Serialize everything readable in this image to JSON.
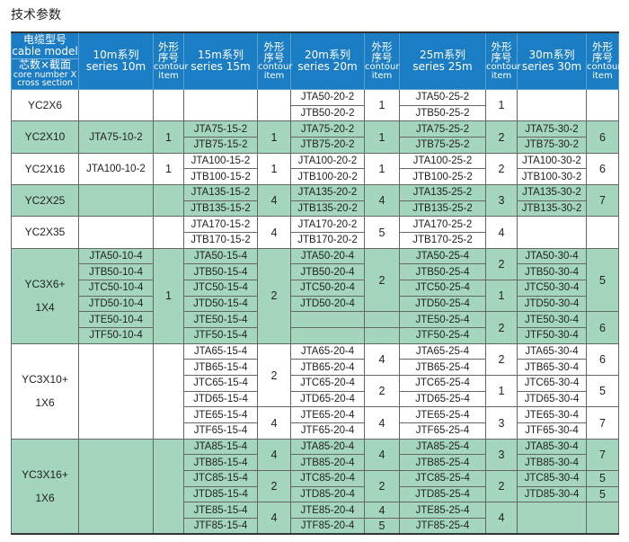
{
  "title": "技术参数",
  "header": {
    "model": {
      "zh": "电缆型号",
      "en": "cable model",
      "zh2": "芯数×截面",
      "en2a": "core number X",
      "en2b": "cross section"
    },
    "series": [
      {
        "zh": "10m系列",
        "en": "series 10m"
      },
      {
        "zh": "15m系列",
        "en": "series 15m"
      },
      {
        "zh": "20m系列",
        "en": "series 20m"
      },
      {
        "zh": "25m系列",
        "en": "series 25m"
      },
      {
        "zh": "30m系列",
        "en": "series 30m"
      }
    ],
    "contour": {
      "zh1": "外形",
      "zh2": "序号",
      "en1": "contour",
      "en2": "item"
    }
  },
  "colors": {
    "header_bg": "#1b7dc3",
    "green_row": "#a3d6bd"
  },
  "groups": [
    {
      "model": [
        "YC2X6"
      ],
      "rows": 2,
      "green": false,
      "cols": {
        "s10": [
          {
            "v": "",
            "span": 2
          }
        ],
        "c10": [
          {
            "v": "",
            "span": 2
          }
        ],
        "s15": [
          {
            "v": "",
            "span": 2
          }
        ],
        "c15": [
          {
            "v": "",
            "span": 2
          }
        ],
        "s20": [
          {
            "v": "JTA50-20-2",
            "span": 1
          },
          {
            "v": "JTB50-20-2",
            "span": 1
          }
        ],
        "c20": [
          {
            "v": "1",
            "span": 2
          }
        ],
        "s25": [
          {
            "v": "JTA50-25-2",
            "span": 1
          },
          {
            "v": "JTB50-25-2",
            "span": 1
          }
        ],
        "c25": [
          {
            "v": "1",
            "span": 2
          }
        ],
        "s30": [
          {
            "v": "",
            "span": 2
          }
        ],
        "c30": [
          {
            "v": "",
            "span": 2
          }
        ]
      }
    },
    {
      "model": [
        "YC2X10"
      ],
      "rows": 2,
      "green": true,
      "cols": {
        "s10": [
          {
            "v": "JTA75-10-2",
            "span": 2
          }
        ],
        "c10": [
          {
            "v": "1",
            "span": 2
          }
        ],
        "s15": [
          {
            "v": "JTA75-15-2",
            "span": 1
          },
          {
            "v": "JTB75-15-2",
            "span": 1
          }
        ],
        "c15": [
          {
            "v": "1",
            "span": 2
          }
        ],
        "s20": [
          {
            "v": "JTA75-20-2",
            "span": 1
          },
          {
            "v": "JTB75-20-2",
            "span": 1
          }
        ],
        "c20": [
          {
            "v": "1",
            "span": 2
          }
        ],
        "s25": [
          {
            "v": "JTA75-25-2",
            "span": 1
          },
          {
            "v": "JTB75-25-2",
            "span": 1
          }
        ],
        "c25": [
          {
            "v": "2",
            "span": 2
          }
        ],
        "s30": [
          {
            "v": "JTA75-30-2",
            "span": 1
          },
          {
            "v": "JTB75-30-2",
            "span": 1
          }
        ],
        "c30": [
          {
            "v": "6",
            "span": 2
          }
        ]
      }
    },
    {
      "model": [
        "YC2X16"
      ],
      "rows": 2,
      "green": false,
      "cols": {
        "s10": [
          {
            "v": "JTA100-10-2",
            "span": 2
          }
        ],
        "c10": [
          {
            "v": "1",
            "span": 2
          }
        ],
        "s15": [
          {
            "v": "JTA100-15-2",
            "span": 1
          },
          {
            "v": "JTB100-15-2",
            "span": 1
          }
        ],
        "c15": [
          {
            "v": "1",
            "span": 2
          }
        ],
        "s20": [
          {
            "v": "JTA100-20-2",
            "span": 1
          },
          {
            "v": "JTB100-20-2",
            "span": 1
          }
        ],
        "c20": [
          {
            "v": "1",
            "span": 2
          }
        ],
        "s25": [
          {
            "v": "JTA100-25-2",
            "span": 1
          },
          {
            "v": "JTB100-25-2",
            "span": 1
          }
        ],
        "c25": [
          {
            "v": "2",
            "span": 2
          }
        ],
        "s30": [
          {
            "v": "JTA100-30-2",
            "span": 1
          },
          {
            "v": "JTB100-30-2",
            "span": 1
          }
        ],
        "c30": [
          {
            "v": "6",
            "span": 2
          }
        ]
      }
    },
    {
      "model": [
        "YC2X25"
      ],
      "rows": 2,
      "green": true,
      "cols": {
        "s10": [
          {
            "v": "",
            "span": 2
          }
        ],
        "c10": [
          {
            "v": "",
            "span": 2
          }
        ],
        "s15": [
          {
            "v": "JTA135-15-2",
            "span": 1
          },
          {
            "v": "JTB135-15-2",
            "span": 1
          }
        ],
        "c15": [
          {
            "v": "4",
            "span": 2
          }
        ],
        "s20": [
          {
            "v": "JTA135-20-2",
            "span": 1
          },
          {
            "v": "JTB135-20-2",
            "span": 1
          }
        ],
        "c20": [
          {
            "v": "4",
            "span": 2
          }
        ],
        "s25": [
          {
            "v": "JTA135-25-2",
            "span": 1
          },
          {
            "v": "JTB135-25-2",
            "span": 1
          }
        ],
        "c25": [
          {
            "v": "3",
            "span": 2
          }
        ],
        "s30": [
          {
            "v": "JTA135-30-2",
            "span": 1
          },
          {
            "v": "JTB135-30-2",
            "span": 1
          }
        ],
        "c30": [
          {
            "v": "7",
            "span": 2
          }
        ]
      }
    },
    {
      "model": [
        "YC2X35"
      ],
      "rows": 2,
      "green": false,
      "cols": {
        "s10": [
          {
            "v": "",
            "span": 2
          }
        ],
        "c10": [
          {
            "v": "",
            "span": 2
          }
        ],
        "s15": [
          {
            "v": "JTA170-15-2",
            "span": 1
          },
          {
            "v": "JTB170-15-2",
            "span": 1
          }
        ],
        "c15": [
          {
            "v": "4",
            "span": 2
          }
        ],
        "s20": [
          {
            "v": "JTA170-20-2",
            "span": 1
          },
          {
            "v": "JTB170-20-2",
            "span": 1
          }
        ],
        "c20": [
          {
            "v": "5",
            "span": 2
          }
        ],
        "s25": [
          {
            "v": "JTA170-25-2",
            "span": 1
          },
          {
            "v": "JTB170-25-2",
            "span": 1
          }
        ],
        "c25": [
          {
            "v": "4",
            "span": 2
          }
        ],
        "s30": [
          {
            "v": "",
            "span": 2
          }
        ],
        "c30": [
          {
            "v": "",
            "span": 2
          }
        ]
      }
    },
    {
      "model": [
        "YC3X6+",
        "1X4"
      ],
      "rows": 6,
      "green": true,
      "cols": {
        "s10": [
          {
            "v": "JTA50-10-4",
            "span": 1
          },
          {
            "v": "JTB50-10-4",
            "span": 1
          },
          {
            "v": "JTC50-10-4",
            "span": 1
          },
          {
            "v": "JTD50-10-4",
            "span": 1
          },
          {
            "v": "JTE50-10-4",
            "span": 1
          },
          {
            "v": "JTF50-10-4",
            "span": 1
          }
        ],
        "c10": [
          {
            "v": "1",
            "span": 6
          }
        ],
        "s15": [
          {
            "v": "JTA50-15-4",
            "span": 1
          },
          {
            "v": "JTB50-15-4",
            "span": 1
          },
          {
            "v": "JTC50-15-4",
            "span": 1
          },
          {
            "v": "JTD50-15-4",
            "span": 1
          },
          {
            "v": "JTE50-15-4",
            "span": 1
          },
          {
            "v": "JTF50-15-4",
            "span": 1
          }
        ],
        "c15": [
          {
            "v": "2",
            "span": 6
          }
        ],
        "s20": [
          {
            "v": "JTA50-20-4",
            "span": 1
          },
          {
            "v": "JTB50-20-4",
            "span": 1
          },
          {
            "v": "JTC50-20-4",
            "span": 1
          },
          {
            "v": "JTD50-20-4",
            "span": 1
          },
          {
            "v": "",
            "span": 1
          },
          {
            "v": "",
            "span": 1
          }
        ],
        "c20": [
          {
            "v": "2",
            "span": 4
          },
          {
            "v": "",
            "span": 1
          },
          {
            "v": "",
            "span": 1
          }
        ],
        "s25": [
          {
            "v": "JTA50-25-4",
            "span": 1
          },
          {
            "v": "JTB50-25-4",
            "span": 1
          },
          {
            "v": "JTC50-25-4",
            "span": 1
          },
          {
            "v": "JTD50-25-4",
            "span": 1
          },
          {
            "v": "JTE50-25-4",
            "span": 1
          },
          {
            "v": "JTF50-25-4",
            "span": 1
          }
        ],
        "c25": [
          {
            "v": "2",
            "span": 2
          },
          {
            "v": "1",
            "span": 2
          },
          {
            "v": "2",
            "span": 2
          }
        ],
        "s30": [
          {
            "v": "JTA50-30-4",
            "span": 1
          },
          {
            "v": "JTB50-30-4",
            "span": 1
          },
          {
            "v": "JTC50-30-4",
            "span": 1
          },
          {
            "v": "JTD50-30-4",
            "span": 1
          },
          {
            "v": "JTE50-30-4",
            "span": 1
          },
          {
            "v": "JTF50-30-4",
            "span": 1
          }
        ],
        "c30": [
          {
            "v": "5",
            "span": 4
          },
          {
            "v": "6",
            "span": 2
          }
        ]
      }
    },
    {
      "model": [
        "YC3X10+",
        "1X6"
      ],
      "rows": 6,
      "green": false,
      "cols": {
        "s10": [
          {
            "v": "",
            "span": 6
          }
        ],
        "c10": [
          {
            "v": "",
            "span": 6
          }
        ],
        "s15": [
          {
            "v": "JTA65-15-4",
            "span": 1
          },
          {
            "v": "JTB65-15-4",
            "span": 1
          },
          {
            "v": "JTC65-15-4",
            "span": 1
          },
          {
            "v": "JTD65-15-4",
            "span": 1
          },
          {
            "v": "JTE65-15-4",
            "span": 1
          },
          {
            "v": "JTF65-15-4",
            "span": 1
          }
        ],
        "c15": [
          {
            "v": "2",
            "span": 4
          },
          {
            "v": "4",
            "span": 2
          }
        ],
        "s20": [
          {
            "v": "JTA65-20-4",
            "span": 1
          },
          {
            "v": "JTB65-20-4",
            "span": 1
          },
          {
            "v": "JTC65-20-4",
            "span": 1
          },
          {
            "v": "JTD65-20-4",
            "span": 1
          },
          {
            "v": "JTE65-20-4",
            "span": 1
          },
          {
            "v": "JTF65-20-4",
            "span": 1
          }
        ],
        "c20": [
          {
            "v": "4",
            "span": 2
          },
          {
            "v": "2",
            "span": 2
          },
          {
            "v": "4",
            "span": 2
          }
        ],
        "s25": [
          {
            "v": "JTA65-25-4",
            "span": 1
          },
          {
            "v": "JTB65-25-4",
            "span": 1
          },
          {
            "v": "JTC65-25-4",
            "span": 1
          },
          {
            "v": "JTD65-25-4",
            "span": 1
          },
          {
            "v": "JTE65-25-4",
            "span": 1
          },
          {
            "v": "JTF65-25-4",
            "span": 1
          }
        ],
        "c25": [
          {
            "v": "2",
            "span": 2
          },
          {
            "v": "1",
            "span": 2
          },
          {
            "v": "3",
            "span": 2
          }
        ],
        "s30": [
          {
            "v": "JTA65-30-4",
            "span": 1
          },
          {
            "v": "JTB65-30-4",
            "span": 1
          },
          {
            "v": "JTC65-30-4",
            "span": 1
          },
          {
            "v": "JTD65-30-4",
            "span": 1
          },
          {
            "v": "JTE65-30-4",
            "span": 1
          },
          {
            "v": "JTF65-30-4",
            "span": 1
          }
        ],
        "c30": [
          {
            "v": "6",
            "span": 2
          },
          {
            "v": "5",
            "span": 2
          },
          {
            "v": "7",
            "span": 2
          }
        ]
      }
    },
    {
      "model": [
        "YC3X16+",
        "1X6"
      ],
      "rows": 6,
      "green": true,
      "cols": {
        "s10": [
          {
            "v": "",
            "span": 6
          }
        ],
        "c10": [
          {
            "v": "",
            "span": 6
          }
        ],
        "s15": [
          {
            "v": "JTA85-15-4",
            "span": 1
          },
          {
            "v": "JTB85-15-4",
            "span": 1
          },
          {
            "v": "JTC85-15-4",
            "span": 1
          },
          {
            "v": "JTD85-15-4",
            "span": 1
          },
          {
            "v": "JTE85-15-4",
            "span": 1
          },
          {
            "v": "JTF85-15-4",
            "span": 1
          }
        ],
        "c15": [
          {
            "v": "4",
            "span": 2
          },
          {
            "v": "2",
            "span": 2
          },
          {
            "v": "4",
            "span": 2
          }
        ],
        "s20": [
          {
            "v": "JTA85-20-4",
            "span": 1
          },
          {
            "v": "JTB85-20-4",
            "span": 1
          },
          {
            "v": "JTC85-20-4",
            "span": 1
          },
          {
            "v": "JTD85-20-4",
            "span": 1
          },
          {
            "v": "JTE85-20-4",
            "span": 1
          },
          {
            "v": "JTF85-20-4",
            "span": 1
          }
        ],
        "c20": [
          {
            "v": "4",
            "span": 2
          },
          {
            "v": "2",
            "span": 2
          },
          {
            "v": "4",
            "span": 1
          },
          {
            "v": "5",
            "span": 1
          }
        ],
        "s25": [
          {
            "v": "JTA85-25-4",
            "span": 1
          },
          {
            "v": "JTB85-25-4",
            "span": 1
          },
          {
            "v": "JTC85-25-4",
            "span": 1
          },
          {
            "v": "JTD85-25-4",
            "span": 1
          },
          {
            "v": "JTE85-25-4",
            "span": 1
          },
          {
            "v": "JTF85-25-4",
            "span": 1
          }
        ],
        "c25": [
          {
            "v": "3",
            "span": 2
          },
          {
            "v": "2",
            "span": 2
          },
          {
            "v": "4",
            "span": 2
          }
        ],
        "s30": [
          {
            "v": "JTA85-30-4",
            "span": 1
          },
          {
            "v": "JTB85-30-4",
            "span": 1
          },
          {
            "v": "JTC85-30-4",
            "span": 1
          },
          {
            "v": "JTD85-30-4",
            "span": 1
          },
          {
            "v": "",
            "span": 2
          }
        ],
        "c30": [
          {
            "v": "7",
            "span": 2
          },
          {
            "v": "5",
            "span": 1
          },
          {
            "v": "5",
            "span": 1
          },
          {
            "v": "",
            "span": 2
          }
        ]
      }
    }
  ]
}
